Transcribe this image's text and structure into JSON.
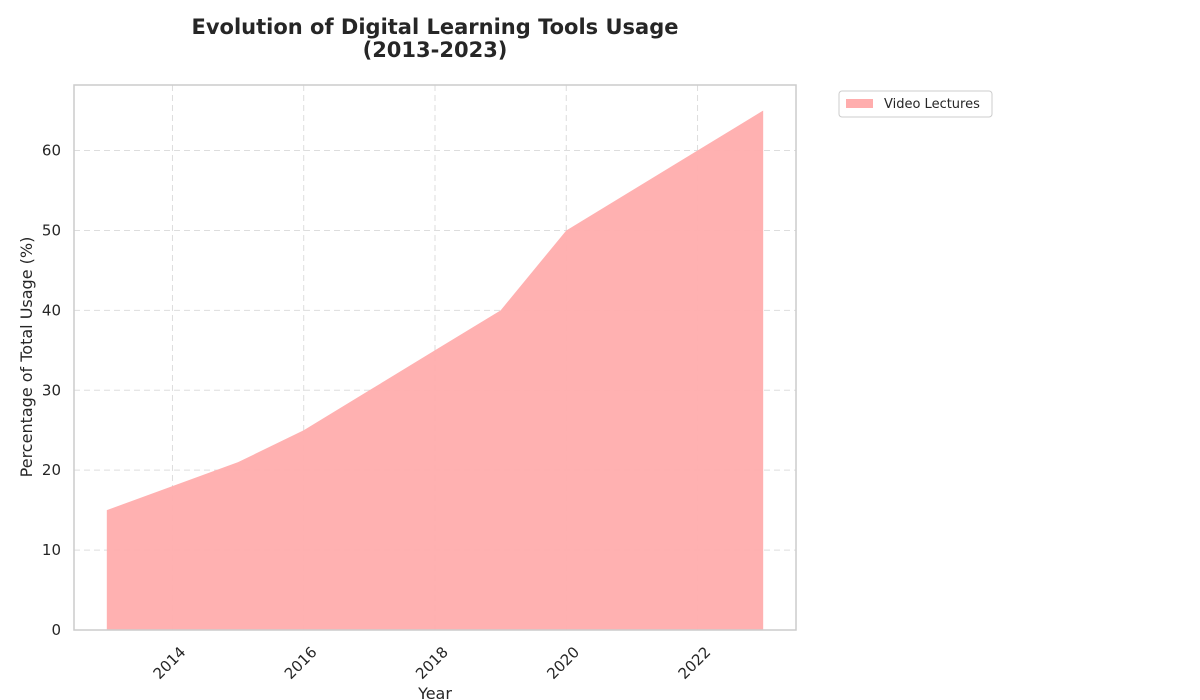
{
  "chart_data": {
    "type": "area",
    "title_line1": "Evolution of Digital Learning Tools Usage",
    "title_line2": "(2013-2023)",
    "xlabel": "Year",
    "ylabel": "Percentage of Total Usage (%)",
    "x": [
      2013,
      2014,
      2015,
      2016,
      2017,
      2018,
      2019,
      2020,
      2021,
      2022,
      2023
    ],
    "series": [
      {
        "name": "Video Lectures",
        "color": "#ffadad",
        "values": [
          15,
          18,
          21,
          25,
          30,
          35,
          40,
          50,
          55,
          60,
          65
        ]
      }
    ],
    "xlim": [
      2012.5,
      2023.5
    ],
    "ylim": [
      0,
      68.2
    ],
    "x_ticks": [
      "2014",
      "2016",
      "2018",
      "2020",
      "2022"
    ],
    "y_ticks": [
      "0",
      "10",
      "20",
      "30",
      "40",
      "50",
      "60"
    ],
    "x_tick_rotation_deg": 45,
    "grid": true,
    "legend_position": "outside-top-right"
  }
}
